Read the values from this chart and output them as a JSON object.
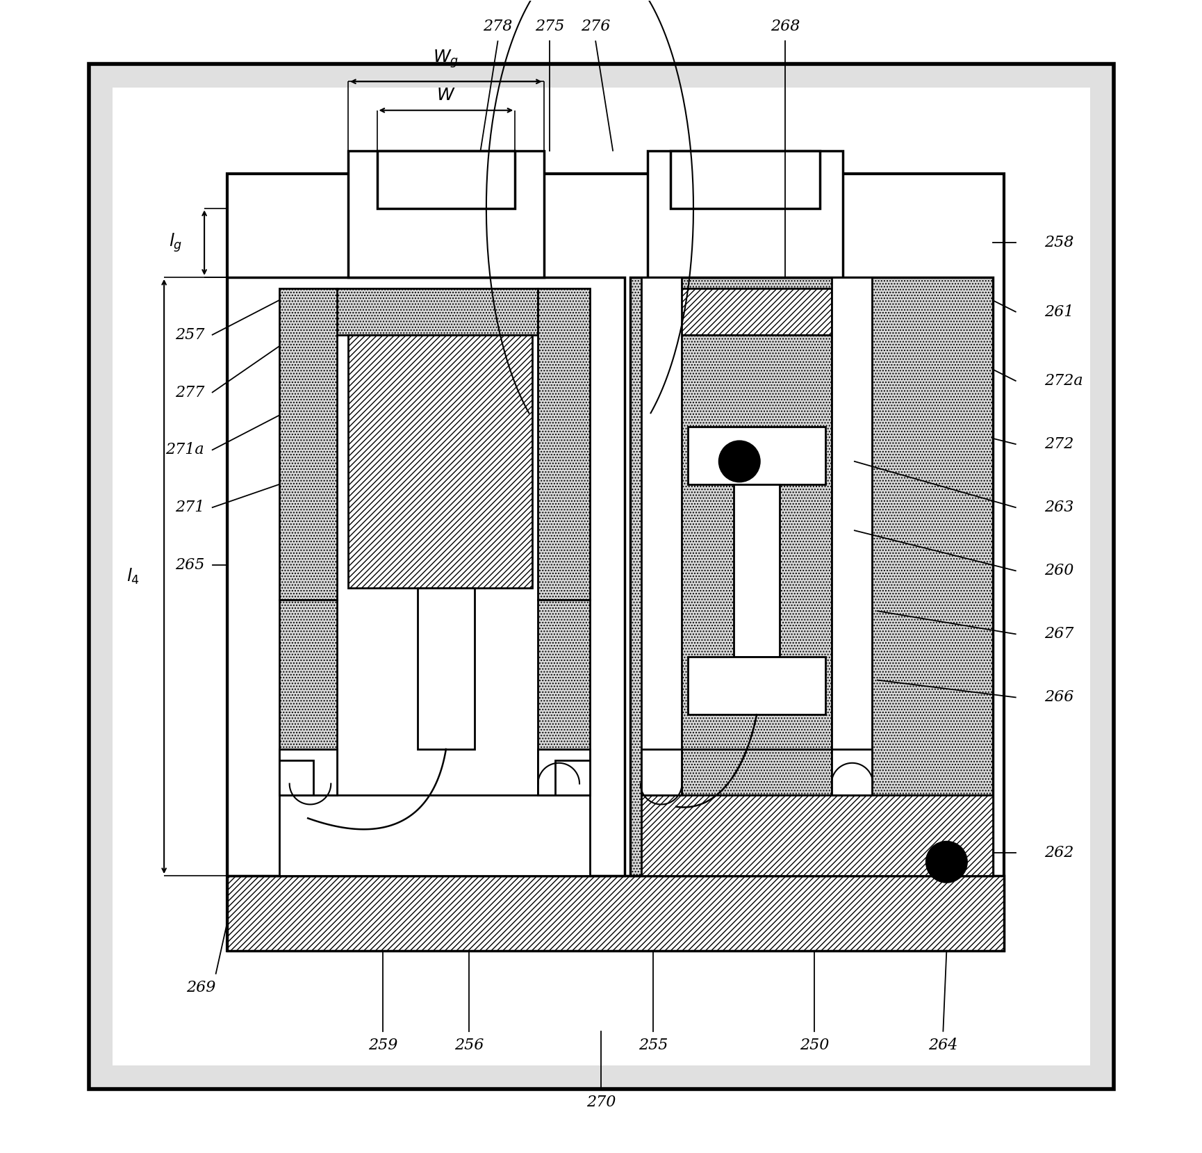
{
  "fig_width": 17.31,
  "fig_height": 16.59,
  "dpi": 100,
  "dot_color": "#cccccc",
  "hatch_fill": "#e8e8e8"
}
